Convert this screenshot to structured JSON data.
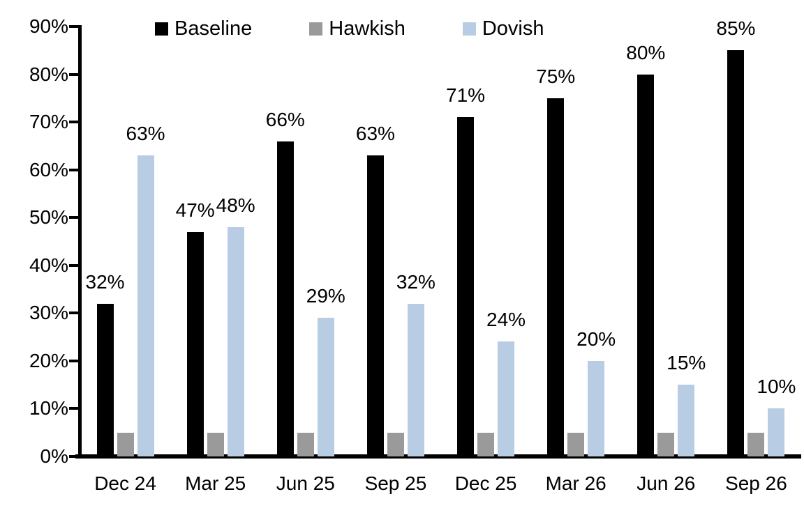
{
  "chart_data": {
    "type": "bar",
    "title": "",
    "categories": [
      "Dec 24",
      "Mar 25",
      "Jun 25",
      "Sep 25",
      "Dec 25",
      "Mar 26",
      "Jun 26",
      "Sep 26"
    ],
    "series": [
      {
        "name": "Baseline",
        "color": "#000000",
        "values": [
          32,
          47,
          66,
          63,
          71,
          75,
          80,
          85
        ],
        "show_data_labels": true
      },
      {
        "name": "Hawkish",
        "color": "#9a9a9a",
        "values": [
          5,
          5,
          5,
          5,
          5,
          5,
          5,
          5
        ],
        "show_data_labels": false
      },
      {
        "name": "Dovish",
        "color": "#b8cce4",
        "values": [
          63,
          48,
          29,
          32,
          24,
          20,
          15,
          10
        ],
        "show_data_labels": true
      }
    ],
    "data_label_format": "percent",
    "y_axis": {
      "min": 0,
      "max": 90,
      "step": 10,
      "tick_labels": [
        "0%",
        "10%",
        "20%",
        "30%",
        "40%",
        "50%",
        "60%",
        "70%",
        "80%",
        "90%"
      ]
    },
    "x_tick_labels": [
      "Dec 24",
      "Mar 25",
      "Jun 25",
      "Sep 25",
      "Dec 25",
      "Mar 26",
      "Jun 26",
      "Sep 26"
    ],
    "legend": {
      "position": "top",
      "entries": [
        {
          "label": "Baseline",
          "color": "#000000"
        },
        {
          "label": "Hawkish",
          "color": "#9a9a9a"
        },
        {
          "label": "Dovish",
          "color": "#b8cce4"
        }
      ]
    },
    "grid": false,
    "axis_color": "#000000",
    "background_color": "#ffffff",
    "ylim": [
      0,
      90
    ]
  }
}
